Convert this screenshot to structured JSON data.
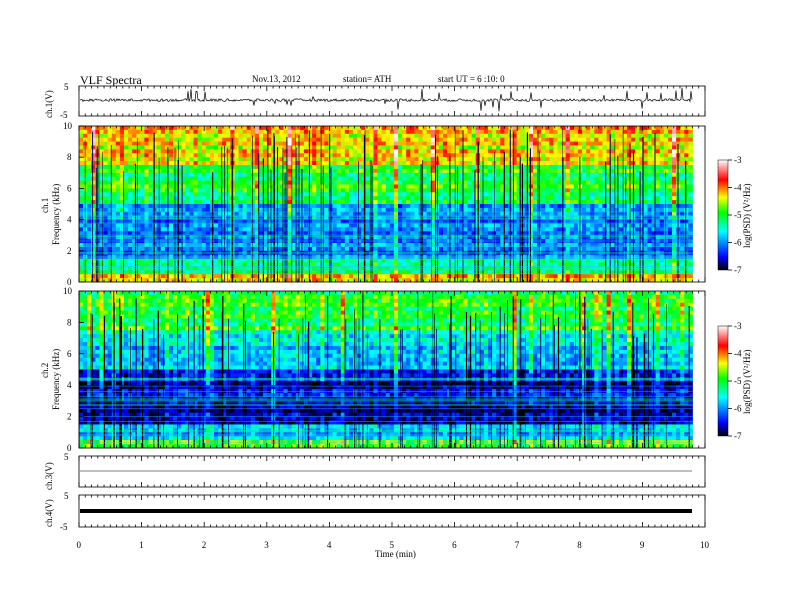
{
  "header": {
    "title": "VLF  Spectra",
    "date": "Nov.13, 2012",
    "station": "station= ATH",
    "start": "start  UT  =   6  :10: 0"
  },
  "panels": {
    "ch1_wave_label": "ch.1(V)",
    "ch1_spec_label": "ch.1",
    "ch2_spec_label": "ch.2",
    "freq_label": "Frequency  (kHz)",
    "ch3_label": "ch.3(V)",
    "ch4_label": "ch.4(V)",
    "wave_ticks": [
      "5",
      "-5"
    ],
    "freq_ticks": [
      "0",
      "2",
      "4",
      "6",
      "8",
      "10"
    ],
    "colorbar_label": "log(PSD) (V²/Hz)",
    "colorbar_ticks": [
      "-3",
      "-4",
      "-5",
      "-6",
      "-7"
    ]
  },
  "axis": {
    "xlabel": "Time  (min)",
    "xticks": [
      "0",
      "1",
      "2",
      "3",
      "4",
      "5",
      "6",
      "7",
      "8",
      "9",
      "10"
    ]
  },
  "chart_data": {
    "type": "heatmap",
    "title": "VLF  Spectra",
    "xlabel": "Time  (min)",
    "xlim": [
      0,
      10
    ],
    "data_end_min": 9.8,
    "waveform_ylim": [
      -5,
      5
    ],
    "frequency_ylim_khz": [
      0,
      10
    ],
    "colorbar_range_log_psd": [
      -7,
      -3
    ],
    "colormap": [
      "#000000",
      "#0000ff",
      "#00ffff",
      "#00ff00",
      "#ffff00",
      "#ff0000",
      "#ffffff"
    ],
    "channels": [
      "ch.1",
      "ch.2",
      "ch.3",
      "ch.4"
    ],
    "spectrogram_bands_khz": [
      {
        "band": [
          0,
          0.5
        ],
        "log_psd": -4.5
      },
      {
        "band": [
          0.5,
          1.5
        ],
        "log_psd": -5.5
      },
      {
        "band": [
          1.5,
          3
        ],
        "log_psd": -6.3
      },
      {
        "band": [
          3,
          5
        ],
        "log_psd": -6.2
      },
      {
        "band": [
          5,
          7.5
        ],
        "log_psd": -5.3
      },
      {
        "band": [
          7.5,
          10
        ],
        "log_psd": -4.6
      }
    ]
  }
}
